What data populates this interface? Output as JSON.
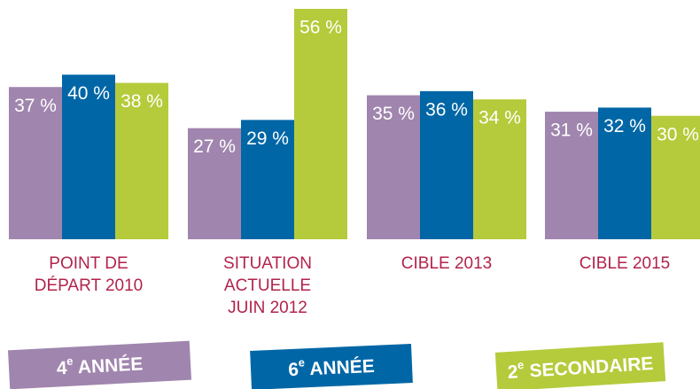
{
  "chart_data": {
    "type": "bar",
    "categories": [
      [
        "POINT DE",
        "DÉPART 2010"
      ],
      [
        "SITUATION",
        "ACTUELLE",
        "JUIN 2012"
      ],
      [
        "CIBLE 2013"
      ],
      [
        "CIBLE 2015"
      ]
    ],
    "series": [
      {
        "name": "4e ANNÉE",
        "color": "#a085ae",
        "values": [
          37,
          27,
          35,
          31
        ],
        "value_labels": [
          "37 %",
          "27 %",
          "35 %",
          "31 %"
        ]
      },
      {
        "name": "6e ANNÉE",
        "color": "#0066a6",
        "values": [
          40,
          29,
          36,
          32
        ],
        "value_labels": [
          "40 %",
          "29 %",
          "36 %",
          "32 %"
        ]
      },
      {
        "name": "2e SECONDAIRE",
        "color": "#b5cb3b",
        "values": [
          38,
          56,
          34,
          30
        ],
        "value_labels": [
          "38 %",
          "56 %",
          "34 %",
          "30 %"
        ]
      }
    ]
  }
}
